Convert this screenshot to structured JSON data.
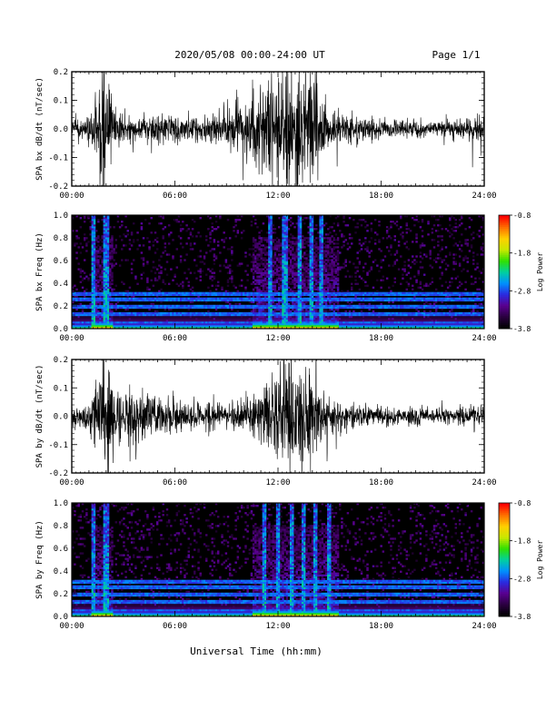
{
  "header": {
    "title": "2020/05/08  00:00-24:00 UT",
    "page": "Page 1/1"
  },
  "footer": {
    "xlabel": "Universal Time (hh:mm)"
  },
  "colors": {
    "trace": "#000000",
    "spectrogram_background": "#000000",
    "colormap": [
      "#000000",
      "#2a0040",
      "#5a0090",
      "#2a2ae0",
      "#0090ff",
      "#00d0a0",
      "#30e000",
      "#c8e800",
      "#ffd000",
      "#ff7000",
      "#ff0000"
    ]
  },
  "chart_data": [
    {
      "type": "line",
      "ylabel": "SPA bx dB/dt (nT/sec)",
      "xlim": [
        0,
        24
      ],
      "ylim": [
        -0.2,
        0.2
      ],
      "x_tick_labels": [
        "00:00",
        "06:00",
        "12:00",
        "18:00",
        "24:00"
      ],
      "y_tick_labels": [
        "-0.2",
        "-0.1",
        "0.0",
        "0.1",
        "0.2"
      ],
      "series": [
        {
          "x": [
            0,
            1,
            1.5,
            1.8,
            2.1,
            2.5,
            3,
            4,
            5,
            6,
            7,
            8,
            9,
            10,
            11,
            12,
            12.5,
            13,
            13.5,
            14,
            14.5,
            15,
            16,
            17,
            18,
            19,
            20,
            21,
            22,
            23,
            24
          ],
          "amplitude": [
            0.025,
            0.04,
            0.12,
            0.2,
            0.2,
            0.06,
            0.04,
            0.035,
            0.05,
            0.04,
            0.035,
            0.04,
            0.06,
            0.1,
            0.13,
            0.17,
            0.2,
            0.2,
            0.2,
            0.18,
            0.13,
            0.06,
            0.05,
            0.035,
            0.03,
            0.03,
            0.03,
            0.025,
            0.025,
            0.035,
            0.04
          ]
        }
      ]
    },
    {
      "type": "heatmap",
      "ylabel": "SPA bx Freq (Hz)",
      "xlim": [
        0,
        24
      ],
      "ylim": [
        0,
        1
      ],
      "x_tick_labels": [
        "00:00",
        "06:00",
        "12:00",
        "18:00",
        "24:00"
      ],
      "y_tick_labels": [
        "0.0",
        "0.2",
        "0.4",
        "0.6",
        "0.8",
        "1.0"
      ],
      "colorbar": {
        "label": "Log Power",
        "range": [
          -3.8,
          -0.8
        ],
        "tick_labels": [
          "-0.8",
          "-1.8",
          "-2.8",
          "-3.8"
        ]
      },
      "bands_hz": [
        0.06,
        0.13,
        0.19,
        0.26,
        0.31
      ],
      "spikes_hours": [
        1.3,
        1.9,
        2.1,
        11.5,
        12.4,
        13.3,
        13.9,
        14.5
      ],
      "activity_windows": [
        [
          1.2,
          2.4
        ],
        [
          10.5,
          15.5
        ]
      ]
    },
    {
      "type": "line",
      "ylabel": "SPA by dB/dt (nT/sec)",
      "xlim": [
        0,
        24
      ],
      "ylim": [
        -0.2,
        0.2
      ],
      "x_tick_labels": [
        "00:00",
        "06:00",
        "12:00",
        "18:00",
        "24:00"
      ],
      "y_tick_labels": [
        "-0.2",
        "-0.1",
        "0.0",
        "0.1",
        "0.2"
      ],
      "series": [
        {
          "x": [
            0,
            1,
            1.5,
            1.8,
            2.1,
            2.5,
            3,
            3.5,
            4,
            5,
            6,
            7,
            8,
            9,
            10,
            11,
            11.5,
            12,
            12.5,
            13,
            13.5,
            14,
            14.5,
            15,
            16,
            17,
            18,
            19,
            20,
            21,
            22,
            23,
            24
          ],
          "amplitude": [
            0.03,
            0.04,
            0.12,
            0.2,
            0.2,
            0.09,
            0.08,
            0.1,
            0.08,
            0.06,
            0.05,
            0.04,
            0.045,
            0.04,
            0.05,
            0.08,
            0.12,
            0.16,
            0.18,
            0.2,
            0.2,
            0.17,
            0.09,
            0.07,
            0.04,
            0.035,
            0.03,
            0.03,
            0.03,
            0.025,
            0.025,
            0.03,
            0.04
          ]
        }
      ]
    },
    {
      "type": "heatmap",
      "ylabel": "SPA by Freq (Hz)",
      "xlim": [
        0,
        24
      ],
      "ylim": [
        0,
        1
      ],
      "x_tick_labels": [
        "00:00",
        "06:00",
        "12:00",
        "18:00",
        "24:00"
      ],
      "y_tick_labels": [
        "0.0",
        "0.2",
        "0.4",
        "0.6",
        "0.8",
        "1.0"
      ],
      "colorbar": {
        "label": "Log Power",
        "range": [
          -3.8,
          -0.8
        ],
        "tick_labels": [
          "-0.8",
          "-1.8",
          "-2.8",
          "-3.8"
        ]
      },
      "bands_hz": [
        0.06,
        0.13,
        0.19,
        0.26,
        0.31
      ],
      "spikes_hours": [
        1.3,
        1.9,
        2.1,
        11.2,
        12.0,
        12.8,
        13.5,
        14.2,
        15.0
      ],
      "activity_windows": [
        [
          1.2,
          2.4
        ],
        [
          10.5,
          15.5
        ]
      ]
    }
  ]
}
